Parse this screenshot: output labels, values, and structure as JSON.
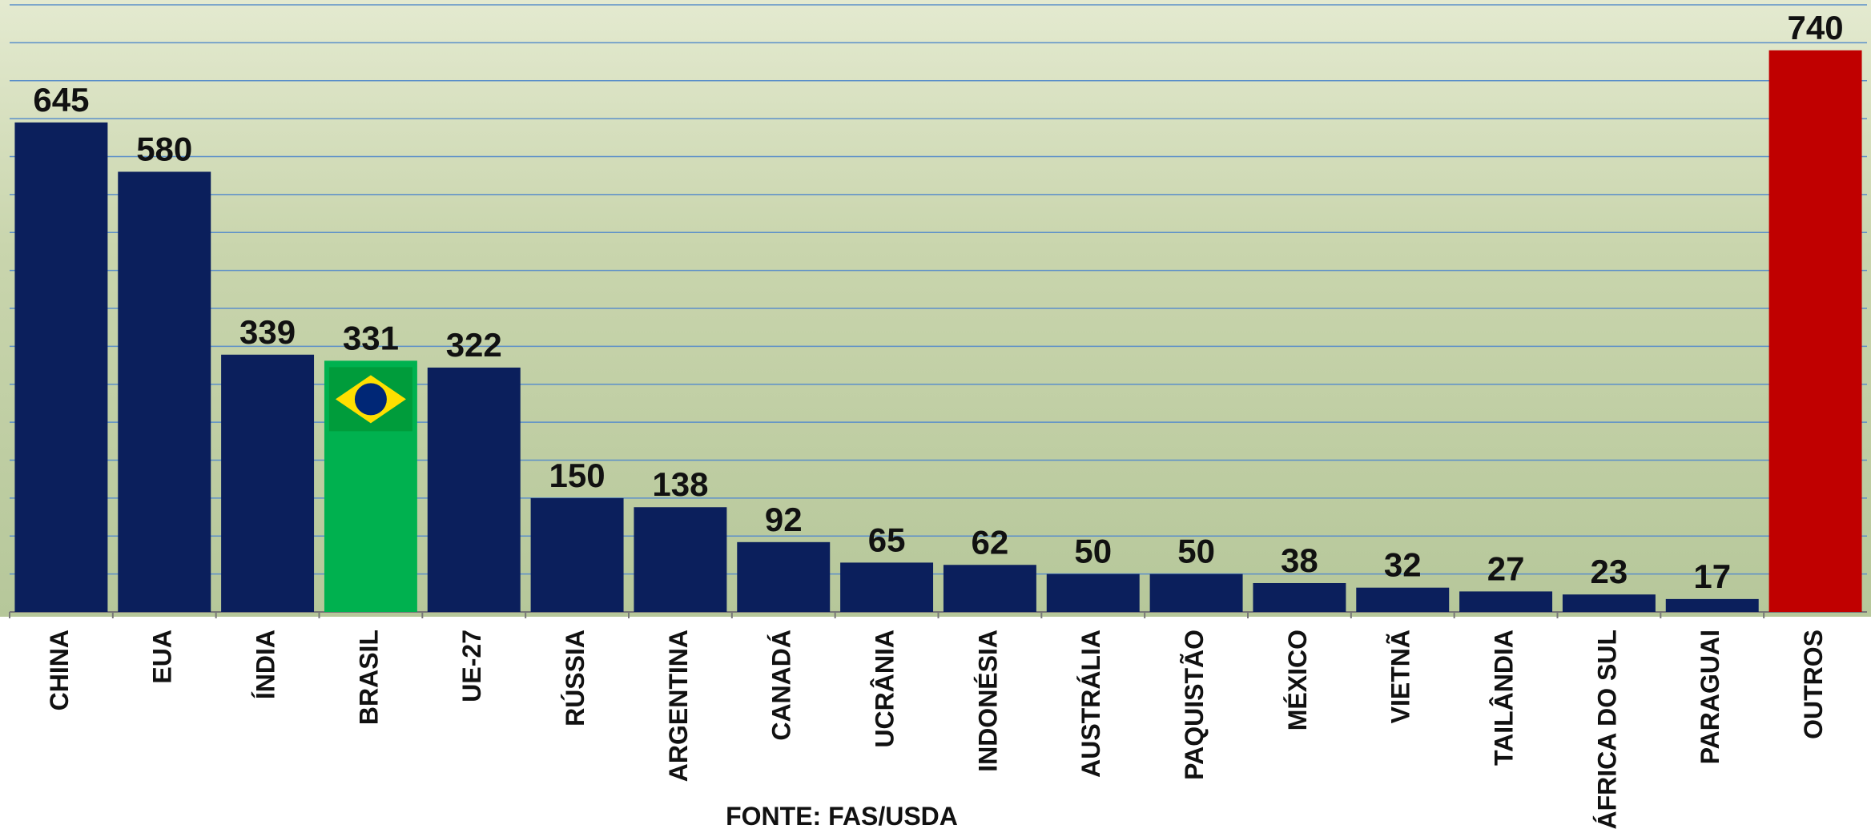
{
  "chart_data": {
    "type": "bar",
    "categories": [
      "CHINA",
      "EUA",
      "ÍNDIA",
      "BRASIL",
      "UE-27",
      "RÚSSIA",
      "ARGENTINA",
      "CANADÁ",
      "UCRÂNIA",
      "INDONÉSIA",
      "AUSTRÁLIA",
      "PAQUISTÃO",
      "MÉXICO",
      "VIETNÃ",
      "TAILÂNDIA",
      "ÁFRICA DO SUL",
      "PARAGUAI",
      "OUTROS"
    ],
    "values": [
      645,
      580,
      339,
      331,
      322,
      150,
      138,
      92,
      65,
      62,
      50,
      50,
      38,
      32,
      27,
      23,
      17,
      740
    ],
    "colors": [
      "#0b1f5c",
      "#0b1f5c",
      "#0b1f5c",
      "#00b14f",
      "#0b1f5c",
      "#0b1f5c",
      "#0b1f5c",
      "#0b1f5c",
      "#0b1f5c",
      "#0b1f5c",
      "#0b1f5c",
      "#0b1f5c",
      "#0b1f5c",
      "#0b1f5c",
      "#0b1f5c",
      "#0b1f5c",
      "#0b1f5c",
      "#c00000"
    ],
    "ylim": [
      0,
      800
    ],
    "yticks": [
      0,
      50,
      100,
      150,
      200,
      250,
      300,
      350,
      400,
      450,
      500,
      550,
      600,
      650,
      700,
      750,
      800
    ],
    "grid": true,
    "source": "FONTE: FAS/USDA"
  }
}
